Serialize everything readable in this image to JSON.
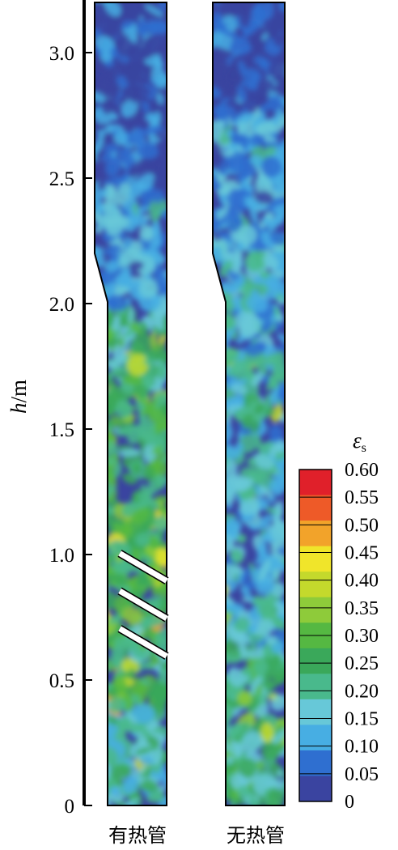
{
  "chart_data": {
    "type": "heatmap",
    "title": "",
    "ylabel": {
      "var": "h",
      "unit": "/m"
    },
    "ylim": [
      0,
      3.2
    ],
    "y_ticks": [
      "0",
      "0.5",
      "1.0",
      "1.5",
      "2.0",
      "2.5",
      "3.0"
    ],
    "y_tick_values": [
      0,
      0.5,
      1.0,
      1.5,
      2.0,
      2.5,
      3.0
    ],
    "panels": [
      {
        "label": "有热管",
        "heat_pipes": 3,
        "pipe_heights": [
          0.95,
          0.8,
          0.65
        ]
      },
      {
        "label": "无热管",
        "heat_pipes": 0
      }
    ],
    "colorbar": {
      "title": {
        "var": "ε",
        "sub": "s"
      },
      "ticks": [
        "0.60",
        "0.55",
        "0.50",
        "0.45",
        "0.40",
        "0.35",
        "0.30",
        "0.25",
        "0.20",
        "0.15",
        "0.10",
        "0.05",
        "0"
      ],
      "range": [
        0,
        0.6
      ],
      "colors": [
        "#3a44a0",
        "#2f6fd0",
        "#47aee3",
        "#67c8d8",
        "#49b98c",
        "#3aa85a",
        "#55b842",
        "#8ecb3a",
        "#c4d92c",
        "#f0e52a",
        "#f2a32a",
        "#ee5a28",
        "#e0202a"
      ]
    },
    "notes": {
      "with_pipes": "dense green/yellow zone below h≈2.0 m, dilute blue top",
      "without_pipes": "mostly blue/cyan with green streaks, dilute top above ≈2.7 m"
    }
  }
}
